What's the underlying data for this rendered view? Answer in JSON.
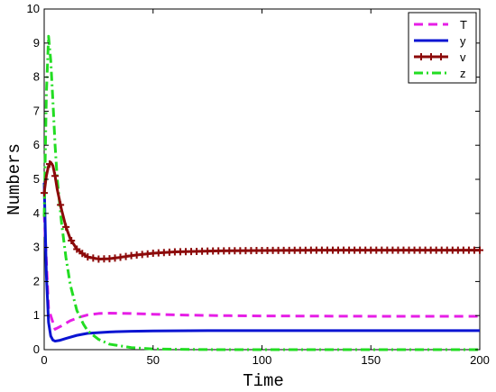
{
  "chart_data": {
    "type": "line",
    "title": "",
    "xlabel": "Time",
    "ylabel": "Numbers",
    "xlim": [
      0,
      200
    ],
    "ylim": [
      0,
      10
    ],
    "x_ticks": [
      "0",
      "50",
      "100",
      "150",
      "200"
    ],
    "y_ticks": [
      "0",
      "1",
      "2",
      "3",
      "4",
      "5",
      "6",
      "7",
      "8",
      "9",
      "10"
    ],
    "grid": false,
    "legend_position": "top-right",
    "series": [
      {
        "name": "T",
        "color": "#e61ee6",
        "style": "dashed",
        "x": [
          0,
          2,
          5,
          8,
          12,
          16,
          20,
          25,
          30,
          40,
          50,
          60,
          80,
          100,
          150,
          200
        ],
        "y": [
          4.0,
          1.2,
          0.6,
          0.7,
          0.85,
          0.95,
          1.02,
          1.06,
          1.07,
          1.06,
          1.04,
          1.02,
          1.0,
          0.99,
          0.98,
          0.98
        ]
      },
      {
        "name": "y",
        "color": "#0a14d2",
        "style": "solid",
        "x": [
          0,
          1,
          2,
          3,
          4,
          5,
          7,
          10,
          15,
          20,
          30,
          40,
          50,
          75,
          100,
          150,
          200
        ],
        "y": [
          4.9,
          2.2,
          0.8,
          0.4,
          0.28,
          0.25,
          0.27,
          0.33,
          0.42,
          0.48,
          0.52,
          0.54,
          0.55,
          0.56,
          0.56,
          0.56,
          0.56
        ]
      },
      {
        "name": "v",
        "color": "#8c0a0a",
        "style": "solid-plus",
        "x": [
          0,
          1,
          2,
          3,
          4,
          5,
          6,
          8,
          10,
          12,
          15,
          18,
          20,
          25,
          30,
          35,
          40,
          50,
          60,
          80,
          100,
          125,
          150,
          175,
          200
        ],
        "y": [
          4.6,
          5.1,
          5.4,
          5.5,
          5.4,
          5.1,
          4.7,
          4.1,
          3.6,
          3.25,
          2.95,
          2.8,
          2.72,
          2.66,
          2.67,
          2.71,
          2.76,
          2.83,
          2.87,
          2.9,
          2.91,
          2.92,
          2.92,
          2.92,
          2.92
        ]
      },
      {
        "name": "z",
        "color": "#22dd22",
        "style": "dashdot",
        "x": [
          0,
          1,
          2,
          3,
          4,
          5,
          6,
          8,
          10,
          12,
          15,
          18,
          20,
          25,
          30,
          40,
          50,
          60,
          80,
          100,
          150,
          200
        ],
        "y": [
          3.9,
          7.5,
          9.2,
          8.5,
          7.3,
          6.0,
          5.0,
          3.7,
          2.7,
          1.9,
          1.15,
          0.75,
          0.55,
          0.3,
          0.16,
          0.06,
          0.02,
          0.01,
          0.0,
          0.0,
          0.0,
          0.0
        ]
      }
    ]
  }
}
